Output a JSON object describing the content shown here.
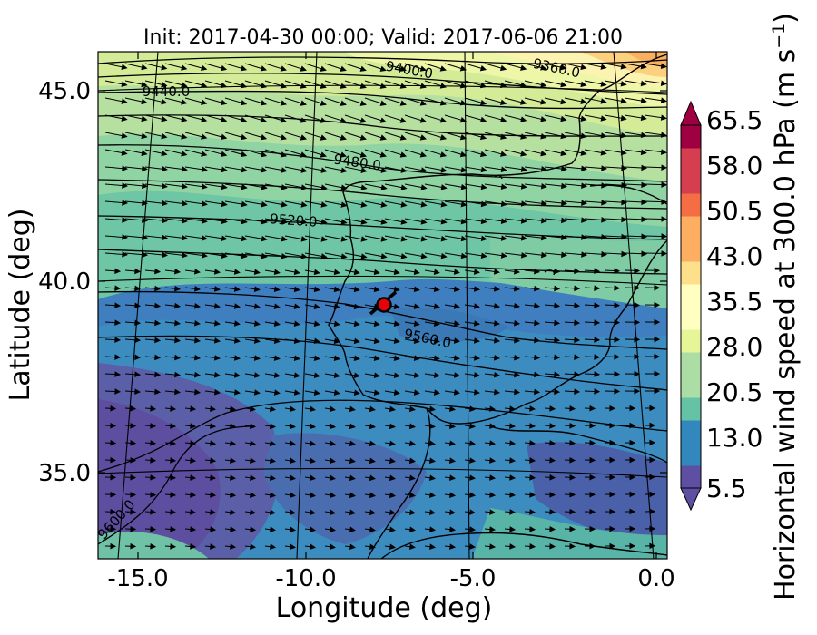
{
  "title": "Init: 2017-04-30 00:00; Valid: 2017-06-06 21:00",
  "chart_data": {
    "type": "map",
    "xlabel": "Longitude (deg)",
    "ylabel": "Latitude (deg)",
    "xlim": [
      -16.0,
      0.3
    ],
    "ylim": [
      32.7,
      46.0
    ],
    "xticks": [
      "-15.0",
      "-10.0",
      "-5.0",
      "0.0"
    ],
    "xtick_values": [
      -15.0,
      -10.0,
      -5.0,
      0.0
    ],
    "yticks": [
      "45.0",
      "40.0",
      "35.0"
    ],
    "ytick_values": [
      45.0,
      40.0,
      35.0
    ],
    "colorbar": {
      "label": "Horizontal wind speed at 300.0 hPa (m s",
      "label_exponent": "−1",
      "label_close": ")",
      "ticks": [
        "65.5",
        "58.0",
        "50.5",
        "43.0",
        "35.5",
        "28.0",
        "20.5",
        "13.0",
        "5.5"
      ],
      "range": [
        5.5,
        65.5
      ],
      "extend": "both",
      "colormap": [
        "#5e4fa2",
        "#3288bd",
        "#66c2a5",
        "#abdda4",
        "#e6f598",
        "#ffffbf",
        "#fee08b",
        "#fdae61",
        "#f46d43",
        "#d53e4f",
        "#9e0142"
      ]
    },
    "height_contour_labels": [
      {
        "text": "9360.0",
        "lon": -3.3,
        "lat": 45.5
      },
      {
        "text": "9400.0",
        "lon": -8.0,
        "lat": 45.5
      },
      {
        "text": "9440.0",
        "lon": -14.2,
        "lat": 44.9
      },
      {
        "text": "9480.0",
        "lon": -8.5,
        "lat": 43.0
      },
      {
        "text": "9520.0",
        "lon": -10.4,
        "lat": 41.5
      },
      {
        "text": "9560.0",
        "lon": -6.9,
        "lat": 38.6
      },
      {
        "text": "9600.0",
        "lon": -15.2,
        "lat": 33.5
      }
    ],
    "marker": {
      "lon": -7.6,
      "lat": 39.4,
      "color": "#e8000b"
    }
  }
}
